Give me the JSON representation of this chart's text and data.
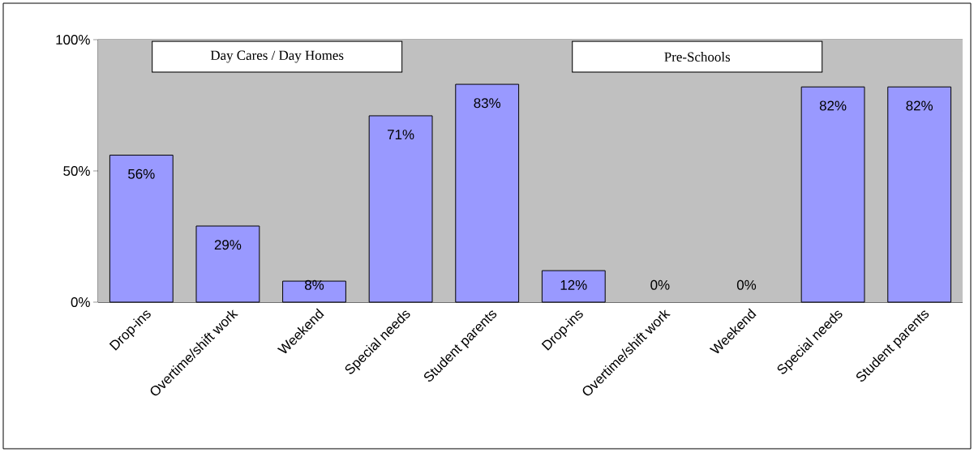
{
  "chart_data": {
    "type": "bar",
    "categories": [
      "Drop-ins",
      "Overtime/shift work",
      "Weekend",
      "Special needs",
      "Student parents",
      "Drop-ins",
      "Overtime/shift work",
      "Weekend",
      "Special needs",
      "Student parents"
    ],
    "values": [
      56,
      29,
      8,
      71,
      83,
      12,
      0,
      0,
      82,
      82
    ],
    "value_labels": [
      "56%",
      "29%",
      "8%",
      "71%",
      "83%",
      "12%",
      "0%",
      "0%",
      "82%",
      "82%"
    ],
    "color": "#9999ff",
    "ylim": [
      0,
      100
    ],
    "yticks": [
      {
        "value": 0,
        "label": "0%"
      },
      {
        "value": 50,
        "label": "50%"
      },
      {
        "value": 100,
        "label": "100%"
      }
    ],
    "grid": "y",
    "annotations": [
      "Day Cares / Day Homes",
      "Pre-Schools"
    ]
  }
}
